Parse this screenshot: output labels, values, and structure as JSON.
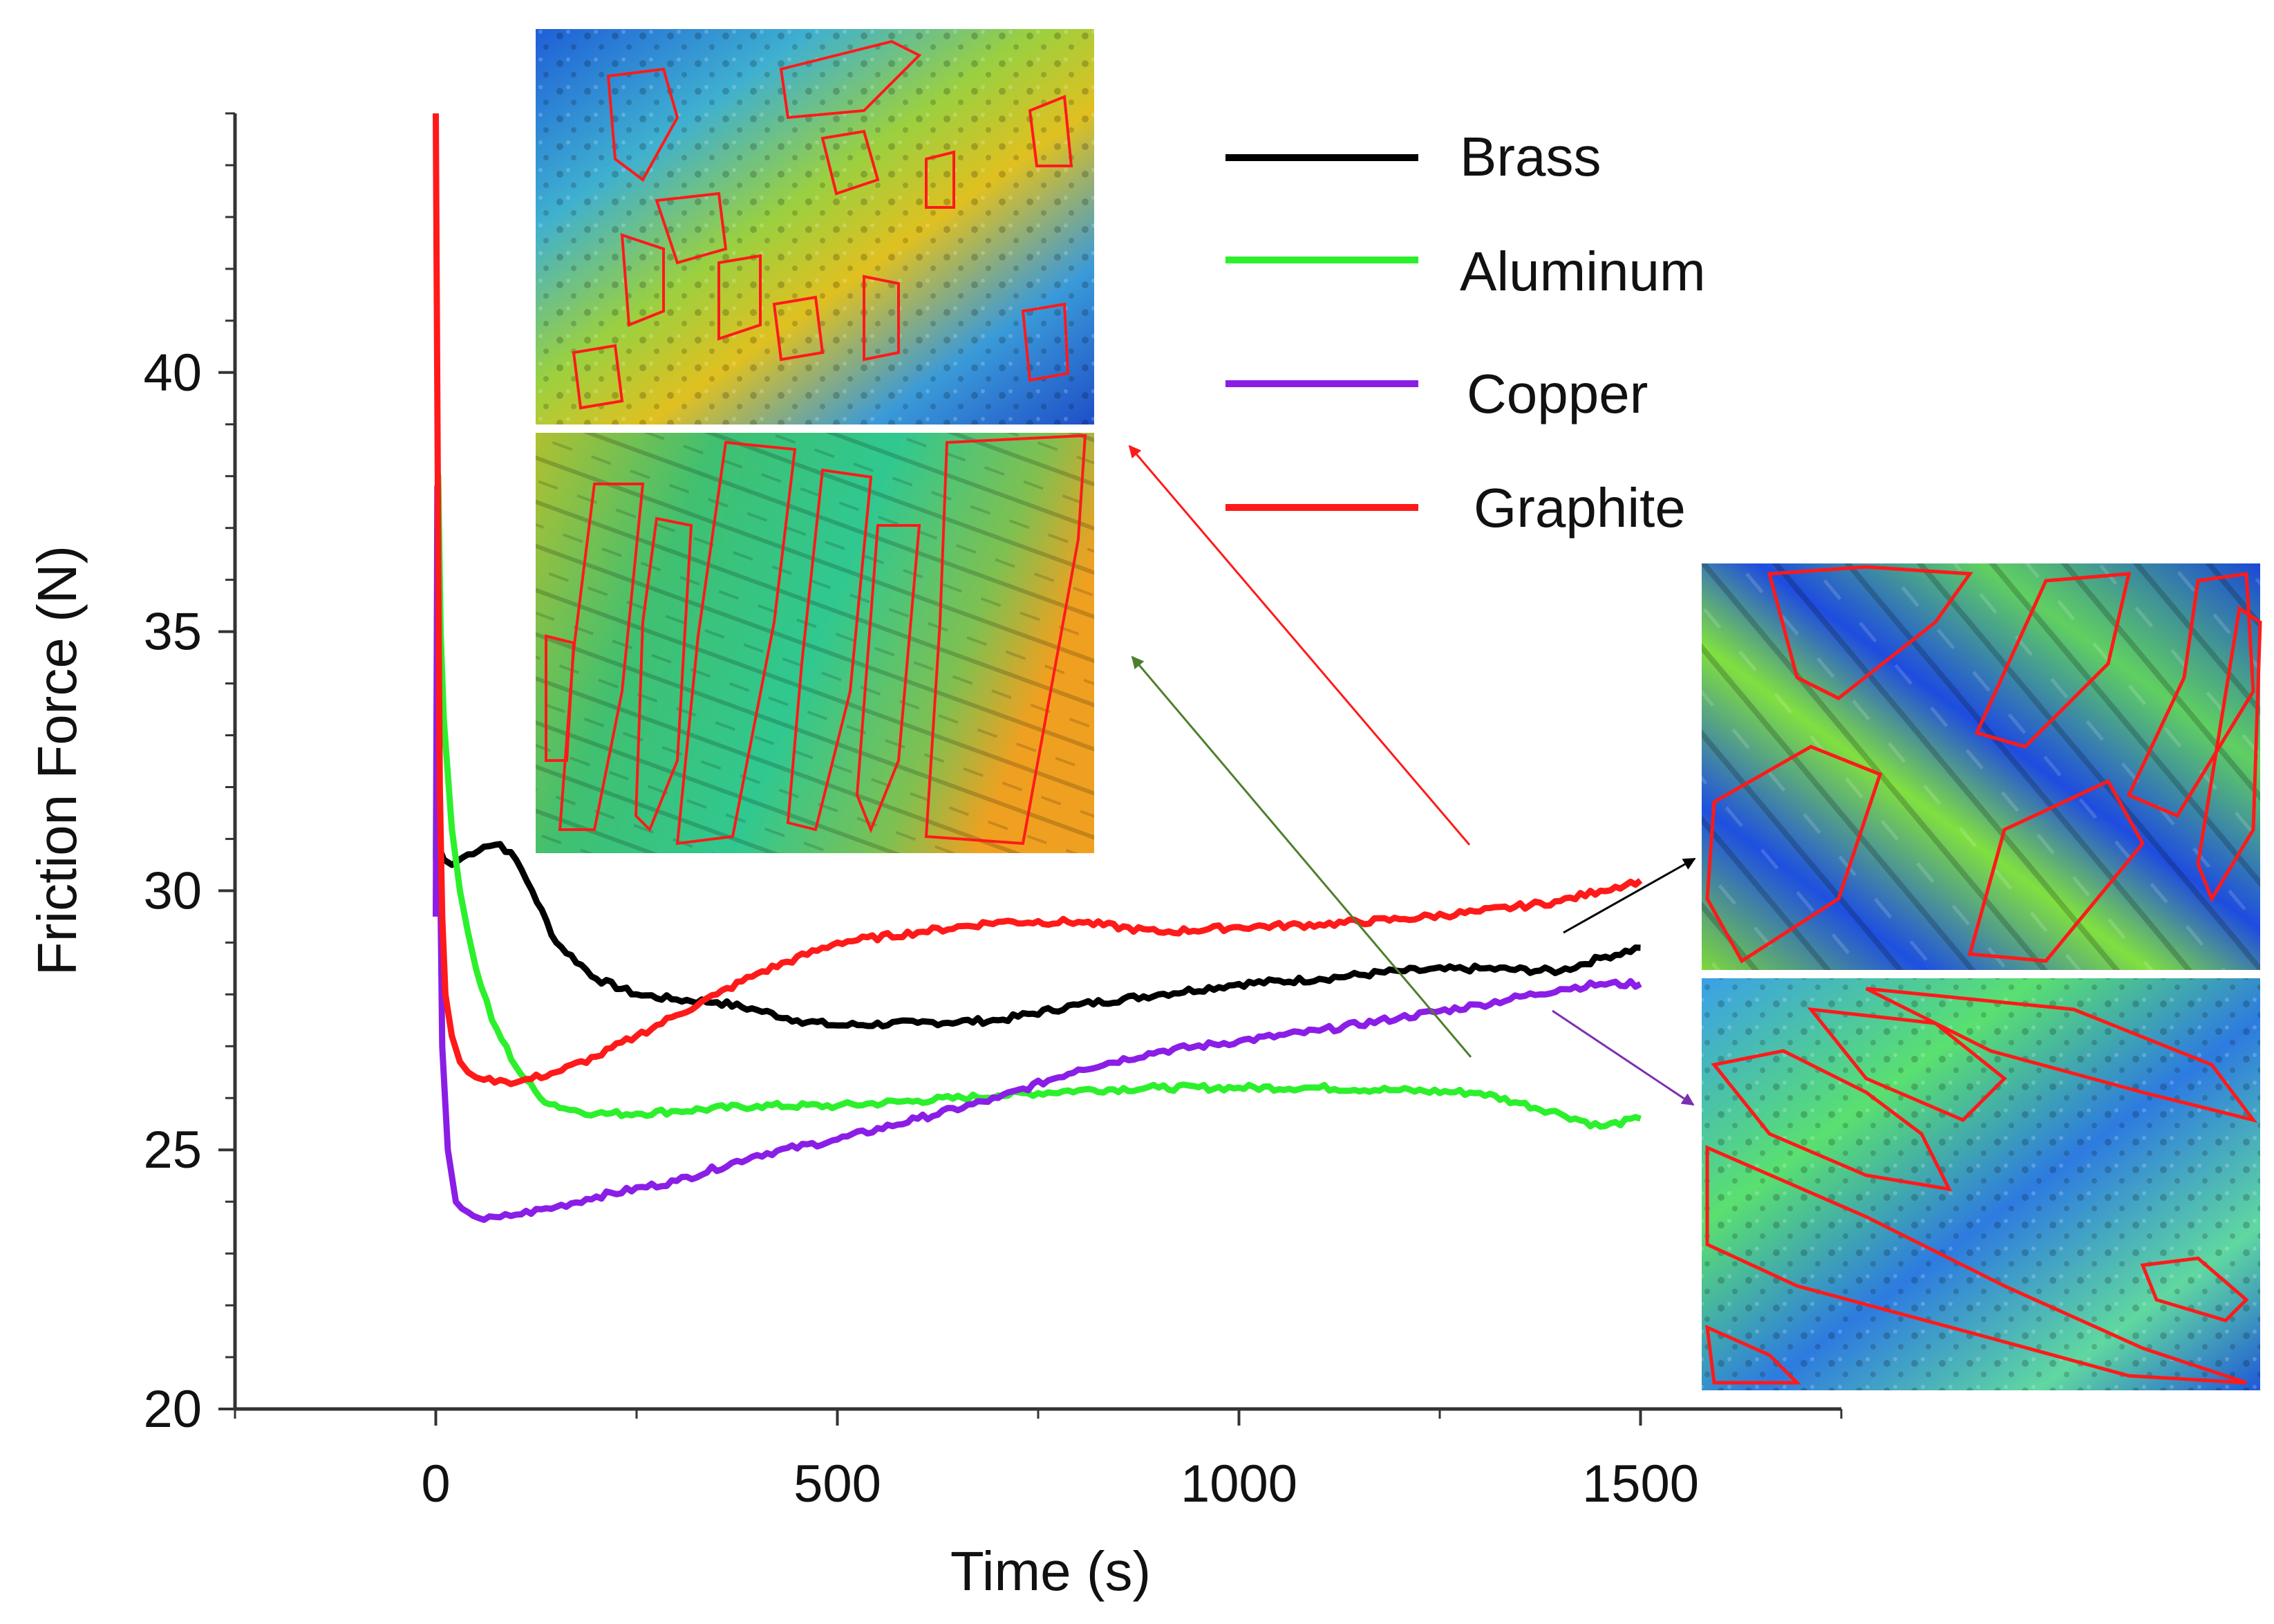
{
  "chart_data": {
    "type": "line",
    "title": "",
    "xlabel": "Time (s)",
    "ylabel": "Friction Force (N)",
    "xlim": [
      -250,
      1750
    ],
    "ylim": [
      20,
      45
    ],
    "xticks": [
      0,
      500,
      1000,
      1500
    ],
    "xtick_labels": [
      "0",
      "500",
      "1000",
      "1500"
    ],
    "yticks": [
      20,
      25,
      30,
      35,
      40
    ],
    "ytick_labels": [
      "20",
      "25",
      "30",
      "35",
      "40"
    ],
    "grid": false,
    "legend_position": "top-right",
    "series": [
      {
        "name": "Brass",
        "color": "#000000",
        "x": [
          0,
          5,
          10,
          20,
          40,
          60,
          80,
          100,
          120,
          150,
          200,
          250,
          300,
          350,
          400,
          450,
          500,
          600,
          700,
          800,
          900,
          1000,
          1100,
          1200,
          1300,
          1400,
          1450,
          1500
        ],
        "y": [
          30.6,
          30.8,
          30.6,
          30.5,
          30.7,
          30.85,
          30.9,
          30.6,
          30.0,
          29.0,
          28.3,
          28.0,
          27.9,
          27.85,
          27.7,
          27.5,
          27.4,
          27.45,
          27.5,
          27.8,
          28.0,
          28.2,
          28.3,
          28.45,
          28.5,
          28.45,
          28.7,
          28.9
        ]
      },
      {
        "name": "Aluminum",
        "color": "#2df02d",
        "x": [
          0,
          3,
          6,
          10,
          20,
          30,
          40,
          50,
          70,
          100,
          130,
          160,
          200,
          250,
          300,
          400,
          500,
          600,
          700,
          800,
          900,
          1000,
          1100,
          1200,
          1300,
          1350,
          1400,
          1450,
          1500
        ],
        "y": [
          30.6,
          38.0,
          35.0,
          33.3,
          31.2,
          30.0,
          29.2,
          28.5,
          27.5,
          26.6,
          26.0,
          25.8,
          25.7,
          25.7,
          25.75,
          25.85,
          25.85,
          25.95,
          26.05,
          26.15,
          26.2,
          26.2,
          26.2,
          26.15,
          26.1,
          25.9,
          25.7,
          25.45,
          25.6
        ]
      },
      {
        "name": "Copper",
        "color": "#8b1ee6",
        "x": [
          0,
          2,
          5,
          8,
          15,
          25,
          40,
          60,
          80,
          100,
          150,
          200,
          300,
          400,
          500,
          600,
          700,
          800,
          900,
          1000,
          1100,
          1200,
          1300,
          1400,
          1450,
          1500
        ],
        "y": [
          29.5,
          37.8,
          31.0,
          27.0,
          25.0,
          24.0,
          23.8,
          23.65,
          23.7,
          23.75,
          23.9,
          24.1,
          24.4,
          24.9,
          25.2,
          25.6,
          26.0,
          26.55,
          26.9,
          27.1,
          27.3,
          27.55,
          27.8,
          28.1,
          28.2,
          28.2
        ]
      },
      {
        "name": "Graphite",
        "color": "#ff1a1a",
        "x": [
          0,
          1,
          3,
          5,
          8,
          12,
          20,
          30,
          40,
          50,
          60,
          80,
          100,
          150,
          200,
          250,
          300,
          350,
          400,
          500,
          600,
          700,
          800,
          900,
          1000,
          1100,
          1200,
          1300,
          1400,
          1450,
          1500
        ],
        "y": [
          45.0,
          42.0,
          36.5,
          32.0,
          29.5,
          28.0,
          27.2,
          26.7,
          26.5,
          26.4,
          26.35,
          26.35,
          26.3,
          26.5,
          26.8,
          27.2,
          27.6,
          28.0,
          28.4,
          29.0,
          29.2,
          29.4,
          29.4,
          29.2,
          29.3,
          29.35,
          29.45,
          29.6,
          29.8,
          30.0,
          30.2
        ]
      }
    ]
  },
  "legend": [
    {
      "label": "Brass",
      "color": "#000000"
    },
    {
      "label": "Aluminum",
      "color": "#2df02d"
    },
    {
      "label": "Copper",
      "color": "#8b1ee6"
    },
    {
      "label": "Graphite",
      "color": "#ff1a1a"
    }
  ],
  "insets": [
    {
      "material": "Graphite",
      "arrow_color": "#ff1a1a"
    },
    {
      "material": "Aluminum",
      "arrow_color": "#4e7f2e"
    },
    {
      "material": "Brass",
      "arrow_color": "#000000"
    },
    {
      "material": "Copper",
      "arrow_color": "#7a2fb0"
    }
  ]
}
